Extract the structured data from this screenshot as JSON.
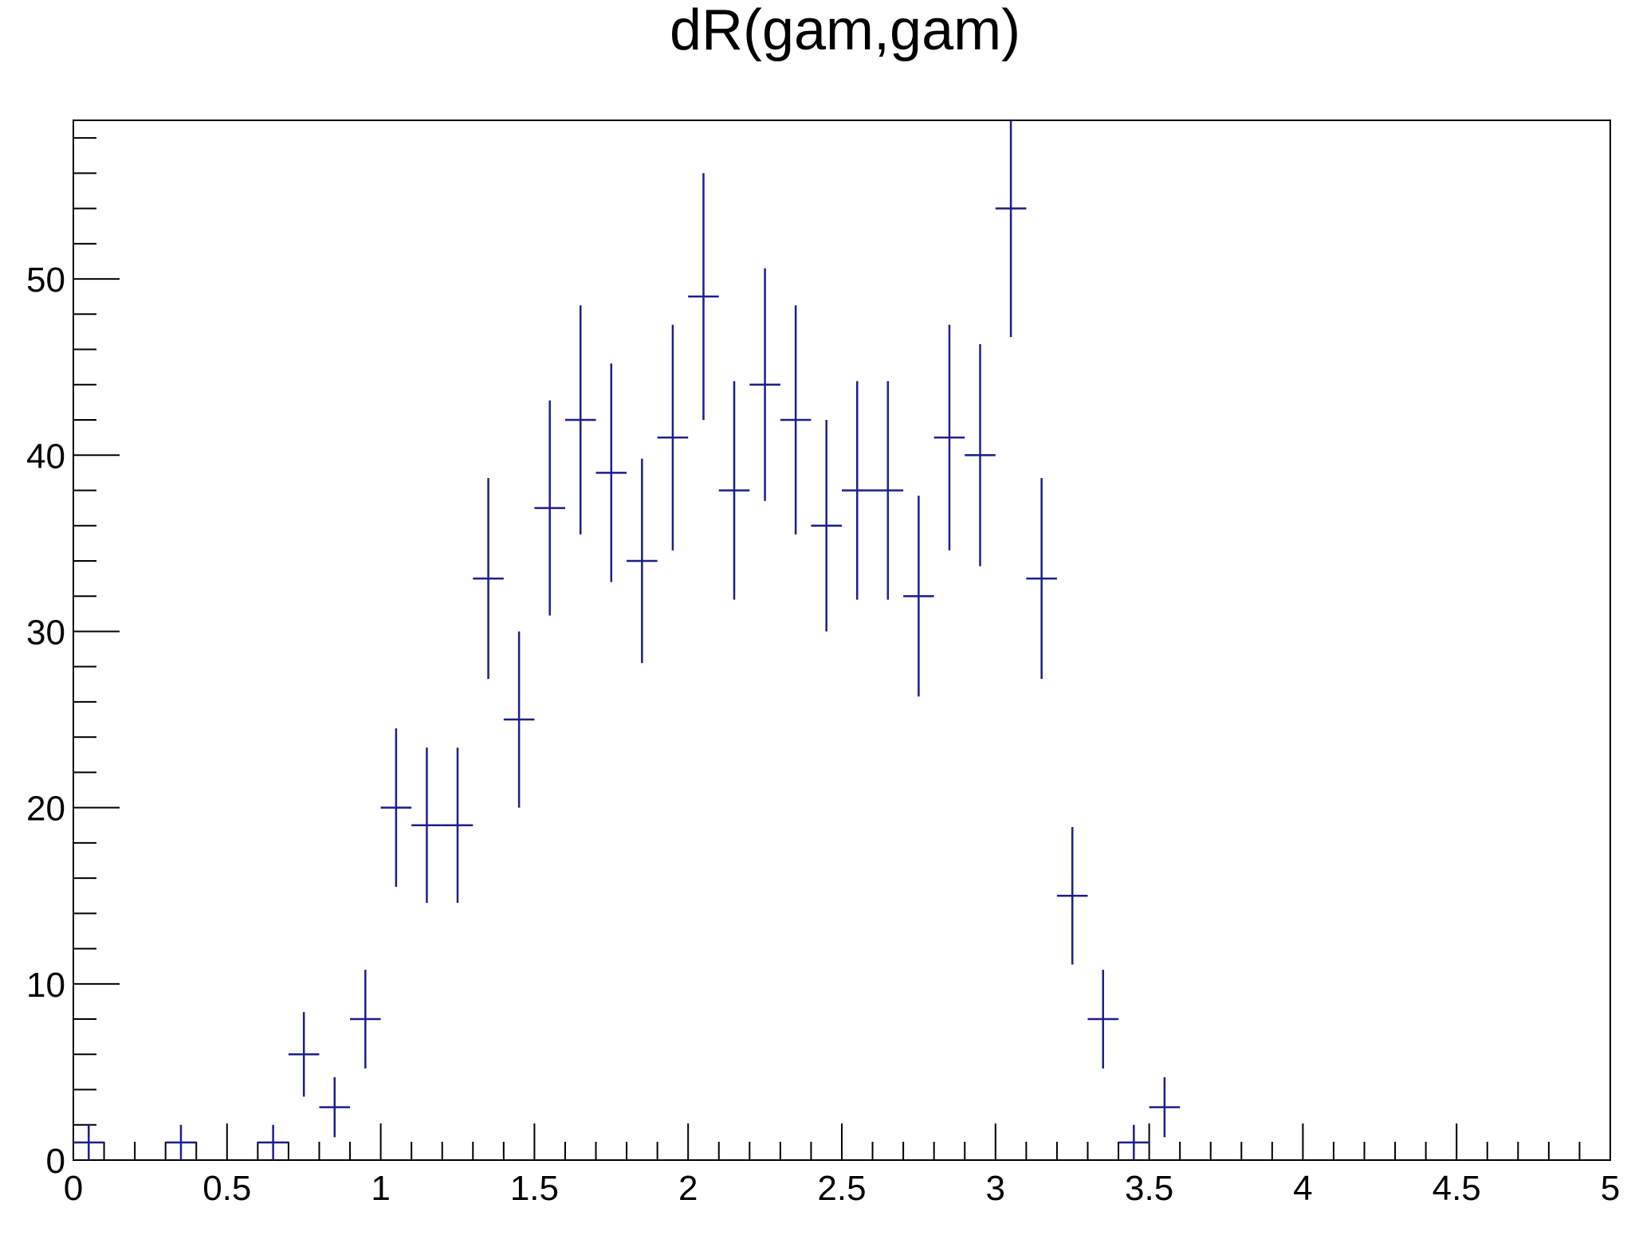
{
  "chart_data": {
    "type": "histogram-errorbars",
    "title": "dR(gam,gam)",
    "xlabel": "",
    "ylabel": "",
    "xlim": [
      0,
      5
    ],
    "ylim": [
      0,
      59
    ],
    "bin_width": 0.1,
    "x_ticks": [
      "0",
      "0.5",
      "1",
      "1.5",
      "2",
      "2.5",
      "3",
      "3.5",
      "4",
      "4.5",
      "5"
    ],
    "x_tick_values": [
      0,
      0.5,
      1,
      1.5,
      2,
      2.5,
      3,
      3.5,
      4,
      4.5,
      5
    ],
    "y_ticks": [
      "0",
      "10",
      "20",
      "30",
      "40",
      "50"
    ],
    "y_tick_values": [
      0,
      10,
      20,
      30,
      40,
      50
    ],
    "series": [
      {
        "color": "#1b1f8a",
        "x": [
          0.05,
          0.35,
          0.65,
          0.75,
          0.85,
          0.95,
          1.05,
          1.15,
          1.25,
          1.35,
          1.45,
          1.55,
          1.65,
          1.75,
          1.85,
          1.95,
          2.05,
          2.15,
          2.25,
          2.35,
          2.45,
          2.55,
          2.65,
          2.75,
          2.85,
          2.95,
          3.05,
          3.15,
          3.25,
          3.35,
          3.45,
          3.55
        ],
        "values": [
          1,
          1,
          1,
          6,
          3,
          8,
          20,
          19,
          19,
          33,
          25,
          37,
          42,
          39,
          34,
          41,
          49,
          38,
          44,
          42,
          36,
          38,
          38,
          32,
          41,
          40,
          54,
          33,
          15,
          8,
          1,
          3
        ],
        "errors": [
          1,
          1,
          1,
          2.4,
          1.7,
          2.8,
          4.5,
          4.4,
          4.4,
          5.7,
          5,
          6.1,
          6.5,
          6.2,
          5.8,
          6.4,
          7,
          6.2,
          6.6,
          6.5,
          6,
          6.2,
          6.2,
          5.7,
          6.4,
          6.3,
          7.3,
          5.7,
          3.9,
          2.8,
          1,
          1.7
        ]
      }
    ],
    "grid": false,
    "legend": "none"
  }
}
